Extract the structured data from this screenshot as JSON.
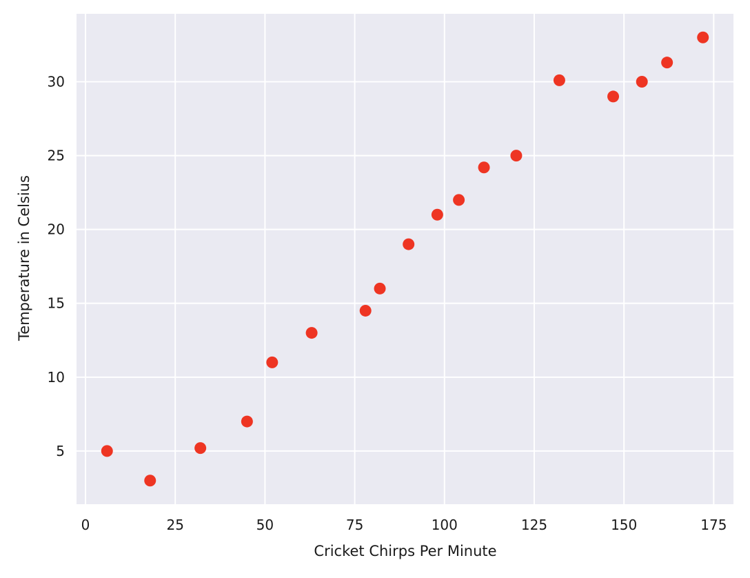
{
  "chart_data": {
    "type": "scatter",
    "title": "",
    "xlabel": "Cricket Chirps Per Minute",
    "ylabel": "Temperature in Celsius",
    "xlim": [
      -2.5,
      180.5
    ],
    "ylim": [
      1.4,
      34.6
    ],
    "xticks": [
      0,
      25,
      50,
      75,
      100,
      125,
      150,
      175
    ],
    "yticks": [
      5,
      10,
      15,
      20,
      25,
      30
    ],
    "grid": true,
    "background_color": "#eaeaf2",
    "grid_color": "#ffffff",
    "marker_color": "#ee3523",
    "series": [
      {
        "points": [
          {
            "x": 6,
            "y": 5
          },
          {
            "x": 18,
            "y": 3
          },
          {
            "x": 32,
            "y": 5.2
          },
          {
            "x": 45,
            "y": 7
          },
          {
            "x": 52,
            "y": 11
          },
          {
            "x": 63,
            "y": 13
          },
          {
            "x": 78,
            "y": 14.5
          },
          {
            "x": 82,
            "y": 16
          },
          {
            "x": 90,
            "y": 19
          },
          {
            "x": 98,
            "y": 21
          },
          {
            "x": 104,
            "y": 22
          },
          {
            "x": 111,
            "y": 24.2
          },
          {
            "x": 120,
            "y": 25
          },
          {
            "x": 132,
            "y": 30.1
          },
          {
            "x": 147,
            "y": 29
          },
          {
            "x": 155,
            "y": 30
          },
          {
            "x": 162,
            "y": 31.3
          },
          {
            "x": 172,
            "y": 33
          }
        ]
      }
    ]
  }
}
